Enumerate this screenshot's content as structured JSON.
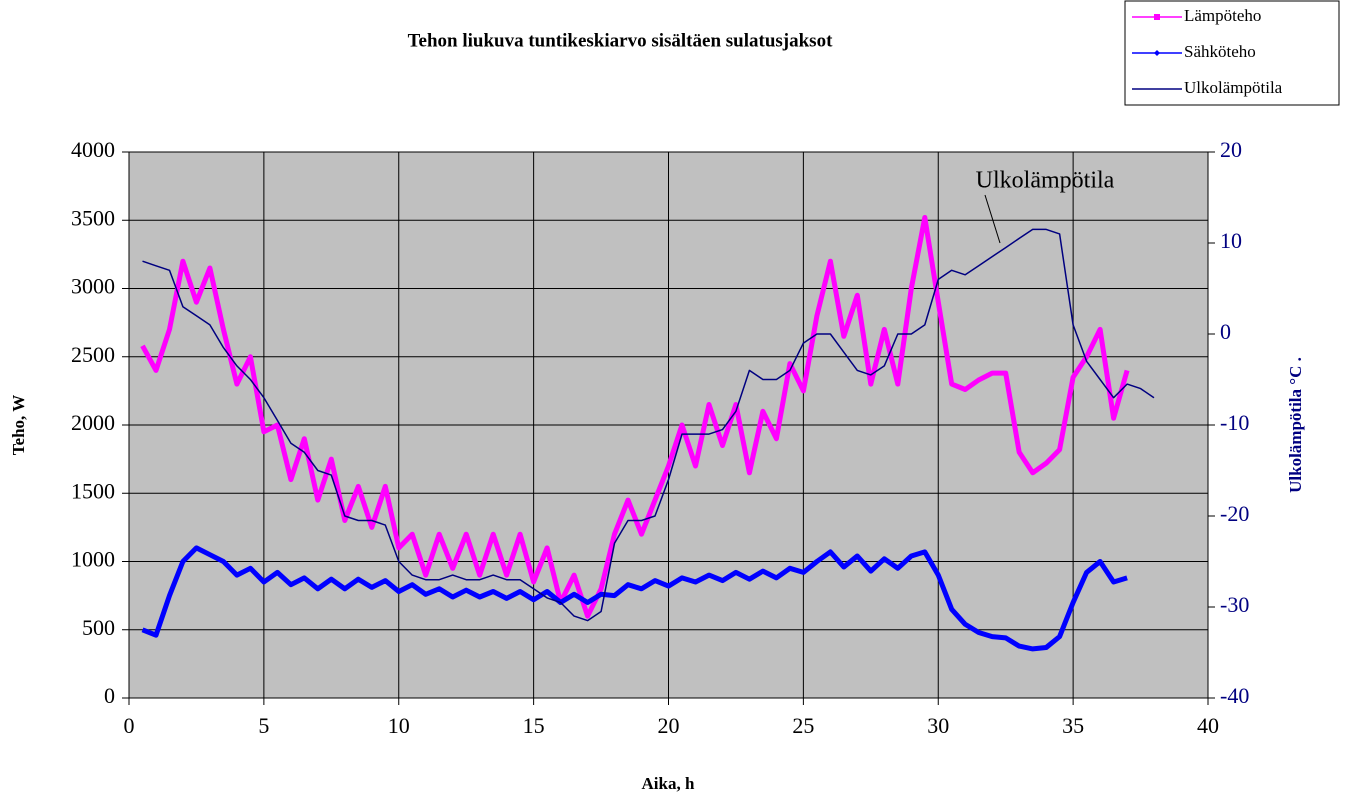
{
  "chart_data": {
    "type": "line",
    "title": "Tehon liukuva tuntikeskiarvo sisältäen sulatusjaksot",
    "x_label": "Aika, h",
    "y_label": "Teho, W",
    "y2_label": "Ulkolämpötila °C    .",
    "annotation": "Ulkolämpötila",
    "xlim": [
      0,
      40
    ],
    "xticks": [
      0,
      5,
      10,
      15,
      20,
      25,
      30,
      35,
      40
    ],
    "ylim": [
      0,
      4000
    ],
    "yticks": [
      0,
      500,
      1000,
      1500,
      2000,
      2500,
      3000,
      3500,
      4000
    ],
    "y2lim": [
      -40,
      20
    ],
    "y2ticks": [
      -40,
      -30,
      -20,
      -10,
      0,
      10,
      20
    ],
    "grid": true,
    "legend": "top-right",
    "x": [
      0.5,
      1,
      1.5,
      2,
      2.5,
      3,
      3.5,
      4,
      4.5,
      5,
      5.5,
      6,
      6.5,
      7,
      7.5,
      8,
      8.5,
      9,
      9.5,
      10,
      10.5,
      11,
      11.5,
      12,
      12.5,
      13,
      13.5,
      14,
      14.5,
      15,
      15.5,
      16,
      16.5,
      17,
      17.5,
      18,
      18.5,
      19,
      19.5,
      20,
      20.5,
      21,
      21.5,
      22,
      22.5,
      23,
      23.5,
      24,
      24.5,
      25,
      25.5,
      26,
      26.5,
      27,
      27.5,
      28,
      28.5,
      29,
      29.5,
      30,
      30.5,
      31,
      31.5,
      32,
      32.5,
      33,
      33.5,
      34,
      34.5,
      35,
      35.5,
      36,
      36.5,
      37,
      37.5,
      38
    ],
    "series": [
      {
        "name": "Lämpöteho",
        "color": "#ff00ff",
        "width": 5,
        "marker": "square",
        "values": [
          2580,
          2400,
          2700,
          3200,
          2900,
          3150,
          2700,
          2300,
          2500,
          1950,
          2000,
          1600,
          1900,
          1450,
          1750,
          1300,
          1550,
          1250,
          1550,
          1100,
          1200,
          900,
          1200,
          950,
          1200,
          900,
          1200,
          900,
          1200,
          850,
          1100,
          700,
          900,
          600,
          800,
          1200,
          1450,
          1200,
          1450,
          1700,
          2000,
          1700,
          2150,
          1850,
          2150,
          1650,
          2100,
          1900,
          2450,
          2250,
          2800,
          3200,
          2650,
          2950,
          2300,
          2700,
          2300,
          3000,
          3520,
          2900,
          2300,
          2260,
          2330,
          2380,
          2380,
          1800,
          1650,
          1720,
          1820,
          2350,
          2500,
          2700,
          2050,
          2400,
          null,
          null
        ]
      },
      {
        "name": "Sähköteho",
        "color": "#0000ff",
        "width": 5,
        "marker": "diamond",
        "values": [
          500,
          460,
          750,
          1000,
          1100,
          1050,
          1000,
          900,
          950,
          850,
          920,
          830,
          880,
          800,
          870,
          800,
          870,
          810,
          860,
          780,
          830,
          760,
          800,
          740,
          790,
          740,
          780,
          730,
          780,
          720,
          780,
          700,
          760,
          700,
          760,
          750,
          830,
          800,
          860,
          820,
          880,
          850,
          900,
          860,
          920,
          870,
          930,
          880,
          950,
          920,
          1000,
          1070,
          960,
          1040,
          930,
          1020,
          950,
          1040,
          1070,
          900,
          650,
          540,
          480,
          450,
          440,
          380,
          360,
          370,
          450,
          700,
          920,
          1000,
          850,
          880,
          null,
          null
        ]
      },
      {
        "name": "Ulkolämpötila",
        "color": "#000080",
        "width": 1.5,
        "marker": "none",
        "axis": "y2",
        "values": [
          8,
          7.5,
          7,
          3,
          2,
          1,
          -1.5,
          -3.5,
          -5,
          -7,
          -9.5,
          -12,
          -13,
          -15,
          -15.5,
          -20,
          -20.5,
          -20.5,
          -21,
          -25,
          -26.5,
          -27,
          -27,
          -26.5,
          -27,
          -27,
          -26.5,
          -27,
          -27,
          -28,
          -29,
          -29.5,
          -31,
          -31.5,
          -30.5,
          -23,
          -20.5,
          -20.5,
          -20,
          -16,
          -11,
          -11,
          -11,
          -10.5,
          -8.5,
          -4,
          -5,
          -5,
          -4,
          -1,
          0,
          0,
          -2,
          -4,
          -4.5,
          -3.5,
          0,
          0,
          1,
          6,
          7,
          6.5,
          7.5,
          8.5,
          9.5,
          10.5,
          11.5,
          11.5,
          11,
          1,
          -3,
          -5,
          -7,
          -5.5,
          -6,
          -7
        ]
      }
    ]
  }
}
